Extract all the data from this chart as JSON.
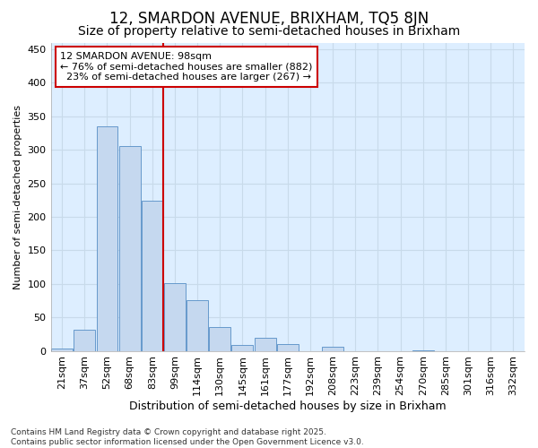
{
  "title_line1": "12, SMARDON AVENUE, BRIXHAM, TQ5 8JN",
  "title_line2": "Size of property relative to semi-detached houses in Brixham",
  "xlabel": "Distribution of semi-detached houses by size in Brixham",
  "ylabel": "Number of semi-detached properties",
  "categories": [
    "21sqm",
    "37sqm",
    "52sqm",
    "68sqm",
    "83sqm",
    "99sqm",
    "114sqm",
    "130sqm",
    "145sqm",
    "161sqm",
    "177sqm",
    "192sqm",
    "208sqm",
    "223sqm",
    "239sqm",
    "254sqm",
    "270sqm",
    "285sqm",
    "301sqm",
    "316sqm",
    "332sqm"
  ],
  "values": [
    4,
    32,
    335,
    305,
    224,
    101,
    75,
    36,
    9,
    20,
    10,
    0,
    6,
    0,
    0,
    0,
    1,
    0,
    0,
    0,
    0
  ],
  "bar_color": "#c5d8ef",
  "bar_edge_color": "#6699cc",
  "property_line_index": 5,
  "annotation_text": "12 SMARDON AVENUE: 98sqm\n← 76% of semi-detached houses are smaller (882)\n  23% of semi-detached houses are larger (267) →",
  "annotation_box_facecolor": "#ffffff",
  "annotation_box_edgecolor": "#cc0000",
  "vline_color": "#cc0000",
  "grid_color": "#c8daea",
  "plot_bg_color": "#ddeeff",
  "fig_bg_color": "#ffffff",
  "footer_text": "Contains HM Land Registry data © Crown copyright and database right 2025.\nContains public sector information licensed under the Open Government Licence v3.0.",
  "ylim": [
    0,
    460
  ],
  "title1_fontsize": 12,
  "title2_fontsize": 10,
  "xlabel_fontsize": 9,
  "ylabel_fontsize": 8,
  "tick_fontsize": 8,
  "ann_fontsize": 8,
  "footer_fontsize": 6.5
}
